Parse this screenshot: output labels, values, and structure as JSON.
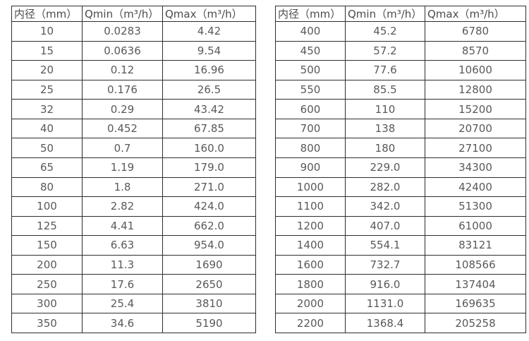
{
  "colors": {
    "background": "#ffffff",
    "border": "#2e2e2e",
    "text": "#595959",
    "header_text": "#4d4d4d"
  },
  "tables": [
    {
      "name": "flow-table-small-diameters",
      "headers": [
        "内径（mm）",
        "Qmin（m³/h）",
        "Qmax（m³/h）"
      ],
      "rows": [
        [
          "10",
          "0.0283",
          "4.42"
        ],
        [
          "15",
          "0.0636",
          "9.54"
        ],
        [
          "20",
          "0.12",
          "16.96"
        ],
        [
          "25",
          "0.176",
          "26.5"
        ],
        [
          "32",
          "0.29",
          "43.42"
        ],
        [
          "40",
          "0.452",
          "67.85"
        ],
        [
          "50",
          "0.7",
          "160.0"
        ],
        [
          "65",
          "1.19",
          "179.0"
        ],
        [
          "80",
          "1.8",
          "271.0"
        ],
        [
          "100",
          "2.82",
          "424.0"
        ],
        [
          "125",
          "4.41",
          "662.0"
        ],
        [
          "150",
          "6.63",
          "954.0"
        ],
        [
          "200",
          "11.3",
          "1690"
        ],
        [
          "250",
          "17.6",
          "2650"
        ],
        [
          "300",
          "25.4",
          "3810"
        ],
        [
          "350",
          "34.6",
          "5190"
        ]
      ]
    },
    {
      "name": "flow-table-large-diameters",
      "headers": [
        "内径（mm）",
        "Qmin（m³/h）",
        "Qmax（m³/h）"
      ],
      "rows": [
        [
          "400",
          "45.2",
          "6780"
        ],
        [
          "450",
          "57.2",
          "8570"
        ],
        [
          "500",
          "77.6",
          "10600"
        ],
        [
          "550",
          "85.5",
          "12800"
        ],
        [
          "600",
          "110",
          "15200"
        ],
        [
          "700",
          "138",
          "20700"
        ],
        [
          "800",
          "180",
          "27100"
        ],
        [
          "900",
          "229.0",
          "34300"
        ],
        [
          "1000",
          "282.0",
          "42400"
        ],
        [
          "1100",
          "342.0",
          "51300"
        ],
        [
          "1200",
          "407.0",
          "61000"
        ],
        [
          "1400",
          "554.1",
          "83121"
        ],
        [
          "1600",
          "732.7",
          "108566"
        ],
        [
          "1800",
          "916.0",
          "137404"
        ],
        [
          "2000",
          "1131.0",
          "169635"
        ],
        [
          "2200",
          "1368.4",
          "205258"
        ]
      ]
    }
  ]
}
